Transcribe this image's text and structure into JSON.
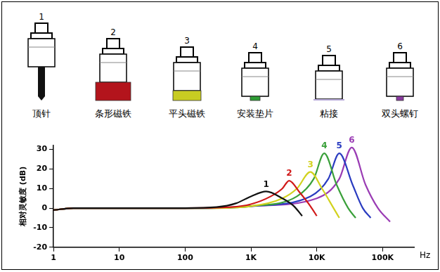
{
  "mounts": [
    {
      "number": "1",
      "label": "顶针",
      "color": "#111111"
    },
    {
      "number": "2",
      "label": "条形磁铁",
      "color": "#b3141c"
    },
    {
      "number": "3",
      "label": "平头磁铁",
      "color": "#c8cc22"
    },
    {
      "number": "4",
      "label": "安装垫片",
      "color": "#2e9e35"
    },
    {
      "number": "5",
      "label": "粘接",
      "color": "#b7a9d8"
    },
    {
      "number": "6",
      "label": "双头螺钉",
      "color": "#8a3aa0"
    }
  ],
  "chart_data": {
    "type": "line",
    "log": "x",
    "grid": false,
    "x_label": "Hz",
    "y_label": "相对灵敏度 (dB)",
    "xlim": [
      1,
      300000
    ],
    "xticks": [
      1,
      10,
      100,
      {
        "value": 1000,
        "label": "1K"
      },
      {
        "value": 10000,
        "label": "10K"
      },
      {
        "value": 100000,
        "label": "100K"
      }
    ],
    "ylim": [
      -20,
      32
    ],
    "yticks": [
      -20,
      -10,
      0,
      10,
      20,
      30
    ],
    "series": [
      {
        "name": "1",
        "color": "#111111",
        "x": [
          1,
          2,
          10,
          100,
          300,
          600,
          1000,
          1700,
          3000,
          4500,
          6000
        ],
        "values": [
          -1,
          0,
          0,
          0,
          0.5,
          2.5,
          6,
          8.5,
          5,
          1,
          -4
        ]
      },
      {
        "name": "2",
        "color": "#d01818",
        "x": [
          1,
          2,
          100,
          500,
          1000,
          2000,
          3000,
          3800,
          5500,
          8000,
          10000
        ],
        "values": [
          -1,
          0,
          0,
          0.5,
          2,
          6,
          10,
          14,
          8,
          1,
          -4
        ]
      },
      {
        "name": "3",
        "color": "#d2d21e",
        "x": [
          1,
          2,
          200,
          1000,
          3000,
          5000,
          8000,
          12000,
          18000,
          22000
        ],
        "values": [
          -1,
          0,
          0,
          1,
          5,
          10,
          18.5,
          10,
          0,
          -5
        ]
      },
      {
        "name": "4",
        "color": "#3aa03a",
        "x": [
          1,
          2,
          200,
          1000,
          5000,
          9000,
          13000,
          20000,
          30000,
          39000
        ],
        "values": [
          -1,
          0,
          0,
          1,
          6,
          15,
          28,
          12,
          0,
          -5
        ]
      },
      {
        "name": "5",
        "color": "#2a3cc0",
        "x": [
          1,
          2,
          200,
          1000,
          8000,
          15000,
          22000,
          35000,
          50000,
          66000
        ],
        "values": [
          -1,
          0,
          0,
          1,
          6,
          15,
          28,
          12,
          0,
          -5
        ]
      },
      {
        "name": "6",
        "color": "#9a3cb4",
        "x": [
          1,
          2,
          200,
          1000,
          10000,
          22000,
          34000,
          55000,
          85000,
          130000
        ],
        "values": [
          -1,
          0,
          0,
          1,
          5,
          15,
          31,
          12,
          0,
          -7
        ]
      }
    ]
  }
}
